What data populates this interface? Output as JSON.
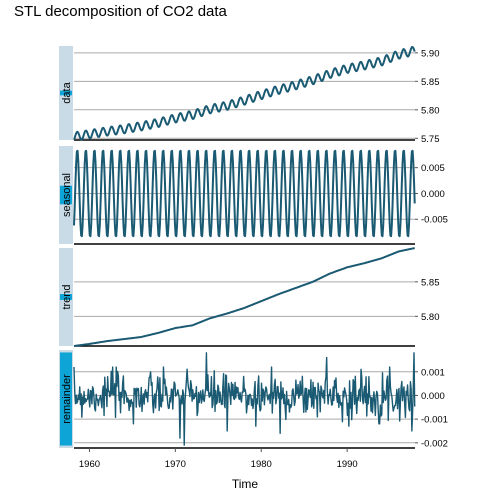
{
  "chart_data": {
    "type": "line",
    "title": "STL decomposition of CO2 data",
    "xlabel": "Time",
    "x_range": [
      1958.2,
      1997.9
    ],
    "x_ticks": [
      {
        "value": 1960,
        "label": "1960"
      },
      {
        "value": 1970,
        "label": "1970"
      },
      {
        "value": 1980,
        "label": "1980"
      },
      {
        "value": 1990,
        "label": "1990"
      }
    ],
    "line_color": "#1a5a73",
    "strip_bar_color": "#0ea5d6",
    "strip_bg_color": "#c9dbe6",
    "panels": [
      {
        "name": "data",
        "ylim": [
          5.747,
          5.912
        ],
        "y_ticks": [
          {
            "value": 5.9,
            "label": "5.90"
          },
          {
            "value": 5.85,
            "label": "5.85"
          },
          {
            "value": 5.8,
            "label": "5.80"
          },
          {
            "value": 5.75,
            "label": "5.75"
          }
        ],
        "scale_bar_fraction": 0.05,
        "points": [
          [
            1958.2,
            5.753
          ],
          [
            1960,
            5.757
          ],
          [
            1962,
            5.762
          ],
          [
            1964,
            5.766
          ],
          [
            1966,
            5.771
          ],
          [
            1968,
            5.777
          ],
          [
            1970,
            5.785
          ],
          [
            1972,
            5.791
          ],
          [
            1974,
            5.801
          ],
          [
            1976,
            5.807
          ],
          [
            1978,
            5.816
          ],
          [
            1980,
            5.826
          ],
          [
            1982,
            5.835
          ],
          [
            1984,
            5.843
          ],
          [
            1986,
            5.852
          ],
          [
            1988,
            5.863
          ],
          [
            1990,
            5.872
          ],
          [
            1992,
            5.878
          ],
          [
            1994,
            5.885
          ],
          [
            1996,
            5.897
          ],
          [
            1997.9,
            5.904
          ]
        ],
        "seasonal_amplitude": 0.0075
      },
      {
        "name": "seasonal",
        "ylim": [
          -0.0098,
          0.0092
        ],
        "y_ticks": [
          {
            "value": 0.005,
            "label": "0.005"
          },
          {
            "value": 0.0,
            "label": "0.000"
          },
          {
            "value": -0.005,
            "label": "-0.005"
          }
        ],
        "scale_bar_fraction": 0.19,
        "amplitude": 0.0085
      },
      {
        "name": "trend",
        "ylim": [
          5.757,
          5.899
        ],
        "y_ticks": [
          {
            "value": 5.85,
            "label": "5.85"
          },
          {
            "value": 5.8,
            "label": "5.80"
          }
        ],
        "scale_bar_fraction": 0.06,
        "points": [
          [
            1958.2,
            5.757
          ],
          [
            1960,
            5.76
          ],
          [
            1962,
            5.764
          ],
          [
            1964,
            5.767
          ],
          [
            1966,
            5.77
          ],
          [
            1968,
            5.776
          ],
          [
            1970,
            5.783
          ],
          [
            1972,
            5.787
          ],
          [
            1974,
            5.797
          ],
          [
            1976,
            5.804
          ],
          [
            1978,
            5.812
          ],
          [
            1980,
            5.822
          ],
          [
            1982,
            5.832
          ],
          [
            1984,
            5.841
          ],
          [
            1986,
            5.85
          ],
          [
            1988,
            5.862
          ],
          [
            1990,
            5.871
          ],
          [
            1992,
            5.877
          ],
          [
            1994,
            5.884
          ],
          [
            1996,
            5.894
          ],
          [
            1997.9,
            5.899
          ]
        ]
      },
      {
        "name": "remainder",
        "ylim": [
          -0.00222,
          0.00192
        ],
        "y_ticks": [
          {
            "value": 0.001,
            "label": "0.001"
          },
          {
            "value": 0.0,
            "label": "0.000"
          },
          {
            "value": -0.001,
            "label": "-0.001"
          },
          {
            "value": -0.002,
            "label": "-0.002"
          }
        ],
        "scale_bar_fraction": 0.95,
        "noise_sd": 0.00045,
        "extremes": [
          [
            1962.7,
            0.0012
          ],
          [
            1965.1,
            -0.0012
          ],
          [
            1970.5,
            -0.0018
          ],
          [
            1971.0,
            -0.0021
          ],
          [
            1973.6,
            0.0018
          ],
          [
            1976.0,
            -0.0015
          ],
          [
            1979.4,
            -0.0013
          ],
          [
            1981.2,
            0.0012
          ],
          [
            1982.2,
            -0.0016
          ],
          [
            1987.6,
            0.0016
          ],
          [
            1990.2,
            -0.0013
          ],
          [
            1997.5,
            -0.0015
          ],
          [
            1997.8,
            0.0018
          ]
        ]
      }
    ]
  }
}
